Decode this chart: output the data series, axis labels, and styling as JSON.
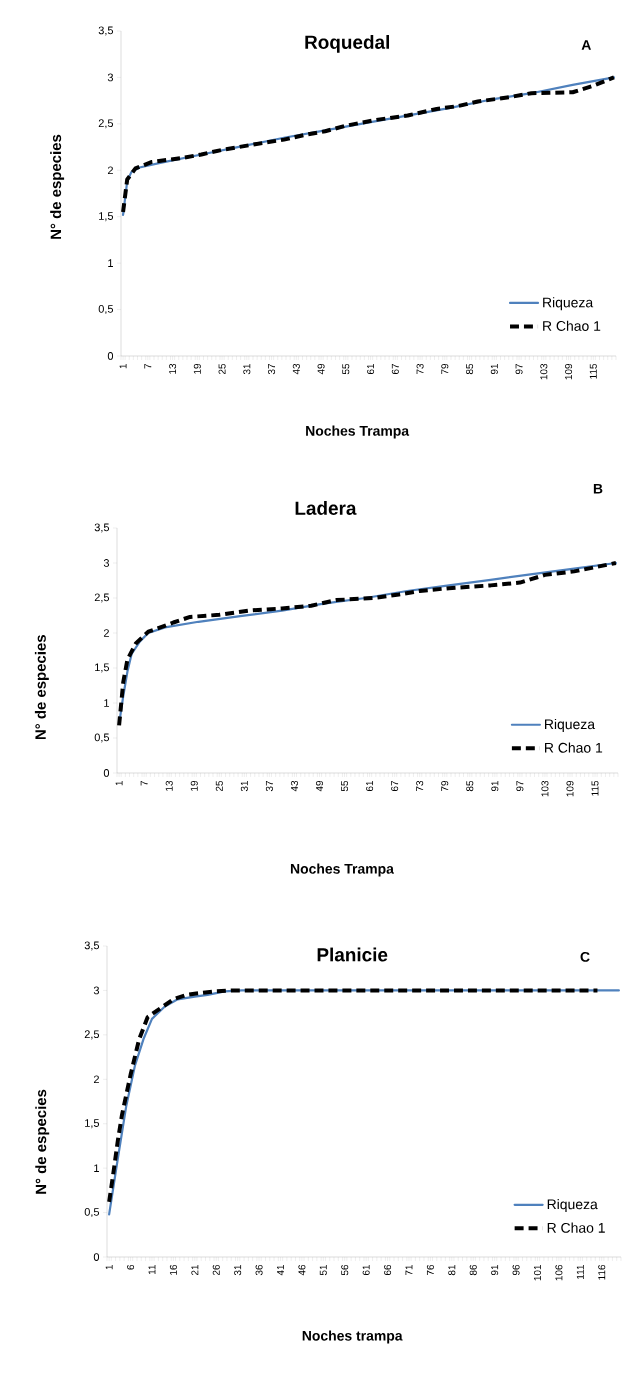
{
  "chart_data": [
    {
      "type": "line",
      "title": "Roquedal",
      "xlabel": "Noches Trampa",
      "ylabel": "N° de especies",
      "annotations": [
        "A"
      ],
      "xlim": [
        0.5,
        120.5
      ],
      "xticks": [
        1,
        7,
        13,
        19,
        25,
        31,
        37,
        43,
        49,
        55,
        61,
        67,
        73,
        79,
        85,
        91,
        97,
        103,
        109,
        115
      ],
      "ylim": [
        0,
        3.5
      ],
      "yticks": [
        0,
        {
          "value": 0.5,
          "label": "0,5"
        },
        1,
        {
          "value": 1.5,
          "label": "1,5"
        },
        2,
        {
          "value": 2.5,
          "label": "2,5"
        },
        3,
        {
          "value": 3.5,
          "label": "3,5"
        }
      ],
      "legend": "bottom right",
      "series": [
        {
          "name": "Riqueza",
          "color": "#4f81bd",
          "line_style": "solid",
          "x": [
            1,
            2,
            3,
            5,
            10,
            20,
            30,
            40,
            50,
            60,
            70,
            80,
            90,
            100,
            110,
            120
          ],
          "values": [
            1.52,
            1.88,
            1.98,
            2.03,
            2.08,
            2.17,
            2.26,
            2.35,
            2.43,
            2.51,
            2.59,
            2.67,
            2.76,
            2.83,
            2.92,
            3.0
          ]
        },
        {
          "name": "R Chao 1",
          "color": "#000000",
          "line_style": "dashed",
          "x": [
            1,
            2,
            4,
            8,
            15,
            20,
            25,
            33,
            40,
            45,
            50,
            55,
            62,
            70,
            77,
            82,
            87,
            95,
            100,
            110,
            115,
            120
          ],
          "values": [
            1.55,
            1.9,
            2.02,
            2.09,
            2.13,
            2.17,
            2.22,
            2.28,
            2.33,
            2.38,
            2.42,
            2.48,
            2.54,
            2.59,
            2.66,
            2.69,
            2.74,
            2.79,
            2.83,
            2.84,
            2.91,
            3.0
          ]
        }
      ]
    },
    {
      "type": "line",
      "title": "Ladera",
      "xlabel": "Noches Trampa",
      "ylabel": "N° de especies",
      "annotations": [
        "B"
      ],
      "xlim": [
        0.5,
        120.5
      ],
      "xticks": [
        1,
        7,
        13,
        19,
        25,
        31,
        37,
        43,
        49,
        55,
        61,
        67,
        73,
        79,
        85,
        91,
        97,
        103,
        109,
        115
      ],
      "ylim": [
        0,
        3.5
      ],
      "yticks": [
        0,
        {
          "value": 0.5,
          "label": "0,5"
        },
        1,
        {
          "value": 1.5,
          "label": "1,5"
        },
        2,
        {
          "value": 2.5,
          "label": "2,5"
        },
        3,
        {
          "value": 3.5,
          "label": "3,5"
        }
      ],
      "legend": "bottom right",
      "series": [
        {
          "name": "Riqueza",
          "color": "#4f81bd",
          "line_style": "solid",
          "x": [
            1,
            2,
            3,
            4,
            6,
            8,
            12,
            20,
            30,
            40,
            50,
            60,
            70,
            80,
            90,
            100,
            110,
            120
          ],
          "values": [
            0.7,
            1.1,
            1.45,
            1.7,
            1.88,
            2.0,
            2.08,
            2.16,
            2.24,
            2.32,
            2.42,
            2.5,
            2.6,
            2.68,
            2.76,
            2.84,
            2.92,
            3.0
          ]
        },
        {
          "name": "R Chao 1",
          "color": "#000000",
          "line_style": "dashed",
          "x": [
            1,
            2,
            3,
            5,
            8,
            10,
            14,
            18,
            25,
            32,
            40,
            47,
            53,
            62,
            68,
            73,
            80,
            90,
            97,
            103,
            110,
            120
          ],
          "values": [
            0.68,
            1.3,
            1.62,
            1.85,
            2.02,
            2.06,
            2.15,
            2.23,
            2.26,
            2.32,
            2.35,
            2.39,
            2.47,
            2.5,
            2.55,
            2.6,
            2.64,
            2.68,
            2.72,
            2.83,
            2.88,
            3.0
          ]
        }
      ]
    },
    {
      "type": "line",
      "title": "Planicie",
      "xlabel": "Noches trampa",
      "ylabel": "N° de especies",
      "annotations": [
        "C"
      ],
      "xlim": [
        0.5,
        120.5
      ],
      "xticks": [
        1,
        6,
        11,
        16,
        21,
        26,
        31,
        36,
        41,
        46,
        51,
        56,
        61,
        66,
        71,
        76,
        81,
        86,
        91,
        96,
        101,
        106,
        111,
        116
      ],
      "ylim": [
        0,
        3.5
      ],
      "yticks": [
        0,
        {
          "value": 0.5,
          "label": "0,5"
        },
        1,
        {
          "value": 1.5,
          "label": "1,5"
        },
        2,
        {
          "value": 2.5,
          "label": "2,5"
        },
        3,
        {
          "value": 3.5,
          "label": "3,5"
        }
      ],
      "legend": "bottom right",
      "series": [
        {
          "name": "Riqueza",
          "color": "#4f81bd",
          "line_style": "solid",
          "x": [
            1,
            3,
            5,
            7,
            9,
            11,
            14,
            17,
            21,
            24,
            28,
            32,
            120
          ],
          "values": [
            0.48,
            1.1,
            1.7,
            2.15,
            2.45,
            2.68,
            2.82,
            2.9,
            2.93,
            2.95,
            2.99,
            3.0,
            3.0
          ]
        },
        {
          "name": "R Chao 1",
          "color": "#000000",
          "line_style": "dashed",
          "x": [
            1,
            2,
            3,
            4,
            6,
            8,
            10,
            16,
            19,
            22,
            26,
            30,
            115
          ],
          "values": [
            0.62,
            0.95,
            1.3,
            1.6,
            2.05,
            2.45,
            2.7,
            2.9,
            2.95,
            2.97,
            2.99,
            3.0,
            3.0
          ]
        }
      ]
    }
  ]
}
